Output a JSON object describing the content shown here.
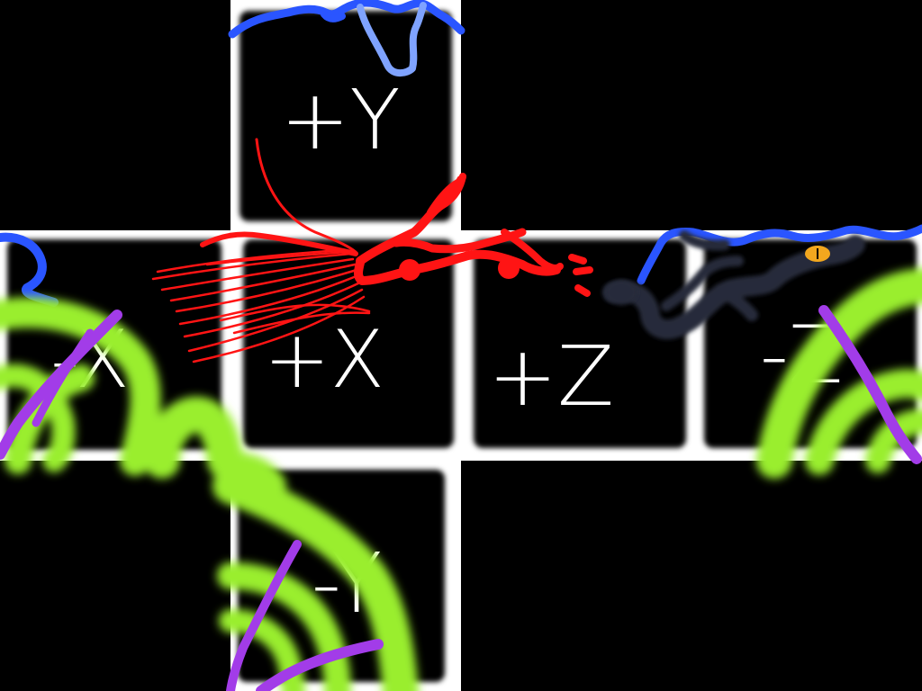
{
  "layout": "cubemap-cross",
  "background_color": "#000000",
  "face_frame_color": "#ffffff",
  "face_fill_color": "#000000",
  "faces": {
    "pos_y": {
      "label": "+Y"
    },
    "neg_x": {
      "label": "-X"
    },
    "pos_x": {
      "label": "+X"
    },
    "pos_z": {
      "label": "+Z"
    },
    "neg_z": {
      "label": "-Z"
    },
    "neg_y": {
      "label": "-Y"
    }
  },
  "drawing": {
    "creature": {
      "name": "red-bird-drawing",
      "color": "#ff1414"
    },
    "blue_squiggle": {
      "name": "blue-scribble",
      "color": "#2a55ff",
      "secondary_color": "#7fa3ff"
    },
    "dark_serpent": {
      "name": "dark-serpent-drawing",
      "color": "#262c3a",
      "eye_color": "#f2a71e"
    },
    "green_swirls": {
      "name": "green-swirls",
      "color": "#9aee2e"
    },
    "purple_strokes": {
      "name": "purple-strokes",
      "color": "#a23ce8"
    }
  }
}
